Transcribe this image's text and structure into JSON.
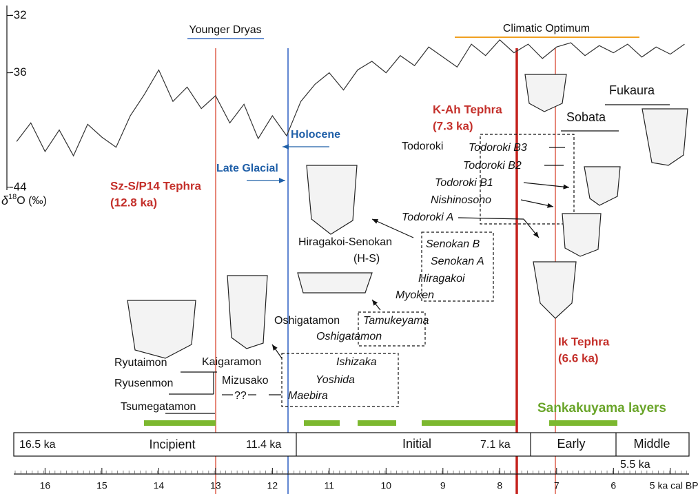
{
  "chart_data": {
    "type": "line",
    "x": [
      16.5,
      16.25,
      16,
      15.75,
      15.5,
      15.25,
      15,
      14.75,
      14.5,
      14.25,
      14,
      13.75,
      13.5,
      13.25,
      13,
      12.75,
      12.5,
      12.25,
      12,
      11.75,
      11.5,
      11.25,
      11,
      10.75,
      10.5,
      10.25,
      10,
      9.75,
      9.5,
      9.25,
      9,
      8.75,
      8.5,
      8.25,
      8,
      7.75,
      7.5,
      7.25,
      7,
      6.75,
      6.5,
      6.25,
      6,
      5.75,
      5.5,
      5.25,
      5,
      4.75
    ],
    "values": [
      -40.8,
      -39.5,
      -41.5,
      -40,
      -41.8,
      -39.6,
      -40.5,
      -41.2,
      -39,
      -37.5,
      -35.8,
      -38,
      -37,
      -38.5,
      -37.6,
      -39.5,
      -38.2,
      -40.6,
      -39,
      -40.4,
      -38,
      -36.8,
      -36,
      -37.2,
      -35.8,
      -35.2,
      -36,
      -34.8,
      -35.5,
      -34.2,
      -34.9,
      -35.6,
      -34,
      -34.8,
      -33.7,
      -34.6,
      -34,
      -35,
      -34.2,
      -33.9,
      -34.8,
      -34.1,
      -34.6,
      -34,
      -34.9,
      -34.2,
      -34.7,
      -34
    ],
    "color": "#333333",
    "xlim": [
      16.55,
      4.67
    ],
    "ylim": [
      -31.3,
      -44.2
    ],
    "xticks": [
      16,
      15,
      14,
      13,
      12,
      11,
      10,
      9,
      8,
      7,
      6,
      {
        "value": 5,
        "label": "5 ka cal BP"
      }
    ],
    "yticks": [
      -32,
      -36,
      -44
    ],
    "ylabel": [
      "δ",
      "18",
      "O (‰)"
    ]
  },
  "periods": {
    "younger_dryas": "Younger Dryas",
    "climatic_optimum": "Climatic Optimum",
    "holocene": "Holocene",
    "late_glacial": "Late Glacial"
  },
  "tephra": [
    {
      "name": "Sz-S/P14 Tephra",
      "age": "(12.8 ka)"
    },
    {
      "name": "K-Ah Tephra",
      "age": "(7.3 ka)"
    },
    {
      "name": "Ik Tephra",
      "age": "(6.6 ka)"
    }
  ],
  "styles": [
    "Fukaura",
    "Sobata",
    "Todoroki",
    "Hiragakoi-Senokan",
    "(H-S)",
    "Oshigatamon",
    "Ryutaimon",
    "Kaigaramon",
    "Ryusenmon",
    "Mizusako",
    "??",
    "Tsumegatamon"
  ],
  "types": [
    "Todoroki B3",
    "Todoroki B2",
    "Todoroki B1",
    "Nishinosono",
    "Todoroki A",
    "Senokan B",
    "Senokan A",
    "Hiragakoi",
    "Myoken",
    "Tamukeyama",
    "Oshigatamon",
    "Ishizaka",
    "Yoshida",
    "Maebira"
  ],
  "layers": "Sankakuyama layers",
  "stages": [
    "16.5 ka",
    "Incipient",
    "11.4 ka",
    "Initial",
    "7.1 ka",
    "Early",
    "Middle",
    "5.5 ka"
  ]
}
